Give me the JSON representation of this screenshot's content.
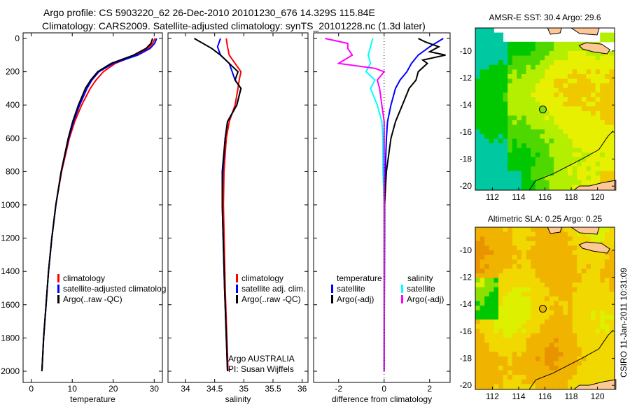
{
  "header": {
    "line1": "Argo profile: CS 5903220_62 26-Dec-2010 20101230_676 14.329S 115.84E",
    "line2": "Climatology: CARS2009. Satellite-adjusted climatology: synTS_20101228.nc (1.3d later)"
  },
  "credit": "CSIRO 11-Jan-2011 10:31:09",
  "colors": {
    "climatology": "#ff0000",
    "satellite": "#0000ff",
    "argo": "#000000",
    "cyan": "#00ffff",
    "magenta": "#ff00ff"
  },
  "chart_data": [
    {
      "type": "line",
      "xlabel": "temperature",
      "ylabel": "",
      "xlim": [
        -2,
        32
      ],
      "ylim": [
        2050,
        0
      ],
      "xticks": [
        "0",
        "10",
        "20",
        "30"
      ],
      "xtick_values": [
        0,
        10,
        20,
        30
      ],
      "yticks": [
        "0",
        "200",
        "400",
        "600",
        "800",
        "1000",
        "1200",
        "1400",
        "1600",
        "1800",
        "2000"
      ],
      "legend": [
        "climatology",
        "satellite-adjusted climatolog",
        "Argo(..raw -QC)"
      ],
      "series": [
        {
          "name": "climatology",
          "color": "#ff0000",
          "depth": [
            0,
            30,
            60,
            100,
            150,
            200,
            250,
            300,
            400,
            500,
            600,
            800,
            1000,
            1200,
            1400,
            1600,
            1800,
            2000
          ],
          "values": [
            30.2,
            29.6,
            28.5,
            25.5,
            20.5,
            17.6,
            15.8,
            14.4,
            12.3,
            10.6,
            9.3,
            7.4,
            6.0,
            5.0,
            4.2,
            3.6,
            3.0,
            2.6
          ]
        },
        {
          "name": "satellite-adjusted climatology",
          "color": "#0000ff",
          "depth": [
            0,
            30,
            60,
            100,
            150,
            200,
            250,
            300,
            400,
            500,
            600,
            800,
            1000,
            1200,
            1400,
            1600,
            1800,
            2000
          ],
          "values": [
            30.6,
            30.1,
            29.0,
            26.0,
            20.0,
            16.5,
            14.8,
            13.6,
            11.8,
            10.3,
            9.1,
            7.3,
            6.0,
            5.0,
            4.2,
            3.6,
            3.0,
            2.6
          ]
        },
        {
          "name": "Argo(..raw -QC)",
          "color": "#000000",
          "depth": [
            0,
            30,
            60,
            100,
            150,
            200,
            250,
            300,
            400,
            500,
            600,
            800,
            1000,
            1200,
            1400,
            1600,
            1800,
            2000
          ],
          "values": [
            29.6,
            29.2,
            28.0,
            25.0,
            19.5,
            16.2,
            14.5,
            13.2,
            11.5,
            10.1,
            9.0,
            7.3,
            6.0,
            5.0,
            4.2,
            3.6,
            3.0,
            2.6
          ]
        }
      ]
    },
    {
      "type": "line",
      "xlabel": "salinity",
      "xlim": [
        33.7,
        36.1
      ],
      "ylim": [
        2050,
        0
      ],
      "xticks": [
        "34",
        "34.5",
        "35",
        "35.5",
        "36"
      ],
      "xtick_values": [
        34,
        34.5,
        35,
        35.5,
        36
      ],
      "legend": [
        "climatology",
        "satellite adj. clim.",
        "Argo(..raw -QC)"
      ],
      "annotation": [
        "Argo AUSTRALIA",
        "PI: Susan Wijffels"
      ],
      "series": [
        {
          "name": "climatology",
          "color": "#ff0000",
          "depth": [
            0,
            50,
            100,
            150,
            200,
            250,
            300,
            400,
            500,
            600,
            800,
            1000,
            1500,
            2000
          ],
          "values": [
            34.7,
            34.72,
            34.75,
            34.85,
            34.95,
            34.92,
            34.9,
            34.85,
            34.75,
            34.7,
            34.66,
            34.65,
            34.68,
            34.73
          ]
        },
        {
          "name": "satellite adj. clim.",
          "color": "#0000ff",
          "depth": [
            0,
            50,
            100,
            150,
            200,
            250,
            300,
            400,
            500,
            600,
            800,
            1000,
            1500,
            2000
          ],
          "values": [
            34.6,
            34.55,
            34.6,
            34.75,
            34.8,
            34.85,
            34.95,
            34.88,
            34.72,
            34.68,
            34.64,
            34.63,
            34.67,
            34.72
          ]
        },
        {
          "name": "Argo(..raw -QC)",
          "color": "#000000",
          "depth": [
            0,
            30,
            60,
            100,
            150,
            200,
            250,
            300,
            400,
            500,
            600,
            800,
            1000,
            1500,
            2000
          ],
          "values": [
            34.15,
            34.3,
            34.45,
            34.6,
            34.75,
            34.9,
            34.85,
            34.95,
            34.88,
            34.72,
            34.68,
            34.63,
            34.63,
            34.67,
            34.72
          ]
        }
      ]
    },
    {
      "type": "line",
      "xlabel": "difference from climatology",
      "xlim": [
        -3.1,
        2.9
      ],
      "ylim": [
        2050,
        0
      ],
      "xticks": [
        "-2",
        "0",
        "2"
      ],
      "xtick_values": [
        -2,
        0,
        2
      ],
      "legend_temperature_title": "temperature",
      "legend_salinity_title": "salinity",
      "legend": [
        "satellite",
        "Argo(-adj)",
        "satellite",
        "Argo(-adj)"
      ],
      "series": [
        {
          "name": "temperature satellite",
          "color": "#0000ff",
          "depth": [
            0,
            50,
            100,
            150,
            200,
            250,
            300,
            400,
            500,
            600,
            800,
            1000,
            2000
          ],
          "values": [
            2.6,
            2.0,
            1.5,
            1.2,
            1.0,
            0.7,
            0.5,
            0.3,
            0.15,
            0.1,
            0.05,
            0.02,
            0.0
          ]
        },
        {
          "name": "temperature Argo(-adj)",
          "color": "#000000",
          "depth": [
            0,
            20,
            50,
            80,
            100,
            130,
            150,
            200,
            250,
            300,
            400,
            500,
            600,
            800,
            1000,
            2000
          ],
          "values": [
            1.5,
            1.8,
            2.4,
            2.0,
            2.7,
            1.7,
            1.9,
            1.5,
            1.4,
            1.1,
            0.8,
            0.5,
            0.3,
            0.1,
            0.02,
            0.0
          ]
        },
        {
          "name": "salinity satellite",
          "color": "#00ffff",
          "depth": [
            0,
            50,
            100,
            150,
            200,
            250,
            300,
            400,
            500,
            600,
            800,
            1000,
            2000
          ],
          "values": [
            -0.5,
            -0.6,
            -0.7,
            -0.6,
            -0.8,
            -0.4,
            -0.6,
            -0.3,
            -0.1,
            -0.05,
            -0.05,
            0.0,
            0.0
          ]
        },
        {
          "name": "salinity Argo(-adj)",
          "color": "#ff00ff",
          "depth": [
            0,
            30,
            60,
            100,
            150,
            180,
            200,
            250,
            300,
            400,
            500,
            600,
            800,
            1000,
            2000
          ],
          "values": [
            -2.6,
            -1.6,
            -1.6,
            -1.4,
            -2.0,
            -0.4,
            0.0,
            -0.3,
            -0.2,
            -0.1,
            0.0,
            0.0,
            0.0,
            0.0,
            0.0
          ]
        }
      ]
    },
    {
      "type": "heatmap",
      "title": "AMSR-E SST: 30.4 Argo: 29.6",
      "xticks": [
        "112",
        "114",
        "116",
        "118",
        "120"
      ],
      "xtick_values": [
        112,
        114,
        116,
        118,
        120
      ],
      "yticks": [
        "-10",
        "-12",
        "-14",
        "-16",
        "-18",
        "-20"
      ],
      "ytick_values": [
        -10,
        -12,
        -14,
        -16,
        -18,
        -20
      ],
      "xlim": [
        110.7,
        121.3
      ],
      "ylim": [
        -20.3,
        -8.3
      ],
      "marker": {
        "lon": 115.84,
        "lat": -14.329
      }
    },
    {
      "type": "heatmap",
      "title": "Altimetric SLA: 0.25 Argo: 0.25",
      "xticks": [
        "112",
        "114",
        "116",
        "118",
        "120"
      ],
      "xtick_values": [
        112,
        114,
        116,
        118,
        120
      ],
      "yticks": [
        "-10",
        "-12",
        "-14",
        "-16",
        "-18",
        "-20"
      ],
      "ytick_values": [
        -10,
        -12,
        -14,
        -16,
        -18,
        -20
      ],
      "xlim": [
        110.7,
        121.3
      ],
      "ylim": [
        -20.3,
        -8.3
      ],
      "marker": {
        "lon": 115.84,
        "lat": -14.329
      }
    }
  ]
}
